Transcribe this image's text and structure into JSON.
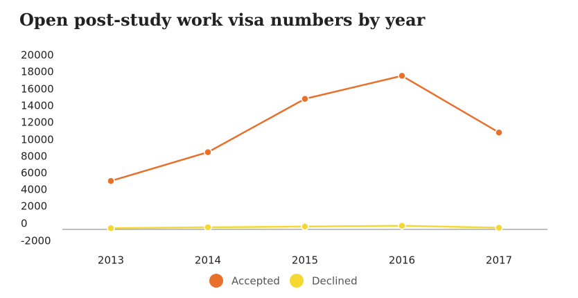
{
  "title": "Open post-study work visa numbers by year",
  "chart_data": {
    "type": "line",
    "title": "Open post-study work visa numbers by year",
    "xlabel": "",
    "ylabel": "",
    "x": [
      "2013",
      "2014",
      "2015",
      "2016",
      "2017"
    ],
    "y_ticks": [
      "20000",
      "18000",
      "16000",
      "14000",
      "12000",
      "10000",
      "8000",
      "6000",
      "4000",
      "2000",
      "0",
      "-2000"
    ],
    "y_display_label_adjustment_note": "",
    "series": [
      {
        "name": "Accepted",
        "color": "#e8702a",
        "values": [
          5900,
          9400,
          15900,
          18700,
          11800
        ]
      },
      {
        "name": "Declined",
        "color": "#f5d832",
        "values": [
          150,
          250,
          350,
          450,
          200
        ]
      }
    ],
    "ylim": [
      -2000,
      20000
    ],
    "grid": false,
    "legend": "bottom"
  }
}
